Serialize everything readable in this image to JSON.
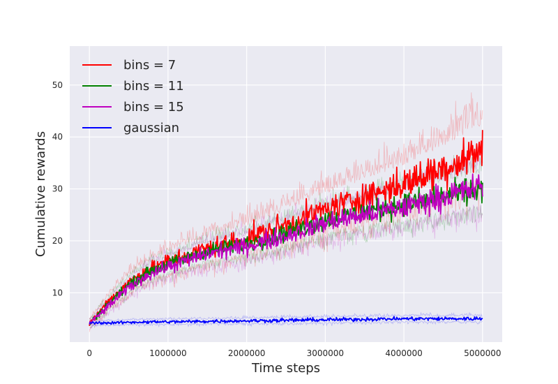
{
  "chart_data": {
    "type": "line",
    "title": "",
    "xlabel": "Time steps",
    "ylabel": "Cumulative rewards",
    "xlim": [
      -250000,
      5250000
    ],
    "ylim": [
      0.5,
      57.5
    ],
    "xticks": [
      0,
      1000000,
      2000000,
      3000000,
      4000000,
      5000000
    ],
    "xtick_labels": [
      "0",
      "1000000",
      "2000000",
      "3000000",
      "4000000",
      "5000000"
    ],
    "yticks": [
      10,
      20,
      30,
      40,
      50
    ],
    "ytick_labels": [
      "10",
      "20",
      "30",
      "40",
      "50"
    ],
    "grid": true,
    "legend_position": "top-left",
    "x": [
      0,
      250000,
      500000,
      750000,
      1000000,
      1500000,
      2000000,
      2500000,
      3000000,
      3500000,
      4000000,
      4500000,
      5000000
    ],
    "series": [
      {
        "name": "bins = 7",
        "color": "#ff0000",
        "values": [
          4,
          8.5,
          12,
          14.5,
          16,
          18.5,
          20.5,
          23,
          26,
          28.5,
          31,
          34,
          37.5
        ],
        "band": [
          1.2,
          1.8,
          2.2,
          2.6,
          3,
          3.5,
          4,
          4.5,
          5,
          5.5,
          6,
          7,
          8
        ]
      },
      {
        "name": "bins = 11",
        "color": "#008000",
        "values": [
          4,
          8,
          11.5,
          14,
          15.5,
          18,
          19.5,
          21.5,
          24,
          25.5,
          27,
          28.5,
          30
        ],
        "band": [
          1,
          1.4,
          1.7,
          2,
          2.2,
          2.6,
          3,
          3.3,
          3.6,
          3.9,
          4.2,
          4.6,
          5
        ]
      },
      {
        "name": "bins = 15",
        "color": "#bf00bf",
        "values": [
          4,
          7.5,
          11,
          13.5,
          15,
          17.5,
          19,
          21,
          23.5,
          25,
          26.5,
          28.5,
          30.5
        ],
        "band": [
          1,
          1.5,
          1.8,
          2.1,
          2.4,
          2.8,
          3.2,
          3.5,
          3.8,
          4.1,
          4.4,
          4.8,
          5.2
        ]
      },
      {
        "name": "gaussian",
        "color": "#0000ff",
        "values": [
          4.2,
          4.2,
          4.3,
          4.4,
          4.4,
          4.5,
          4.6,
          4.7,
          4.8,
          4.9,
          5,
          5,
          5
        ],
        "band": [
          0.5,
          0.5,
          0.5,
          0.6,
          0.6,
          0.6,
          0.6,
          0.7,
          0.7,
          0.7,
          0.7,
          0.7,
          0.7
        ]
      }
    ]
  }
}
